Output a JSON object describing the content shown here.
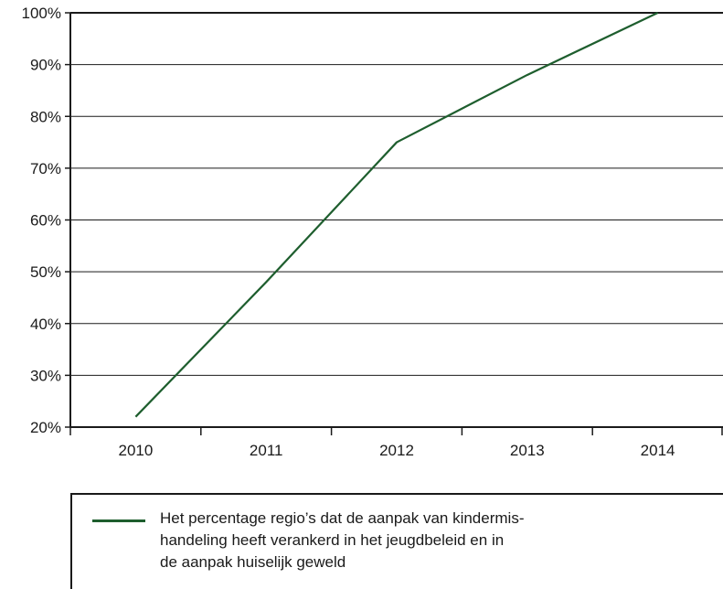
{
  "chart_data": {
    "type": "line",
    "title": "",
    "xlabel": "",
    "ylabel": "",
    "categories": [
      "2010",
      "2011",
      "2012",
      "2013",
      "2014"
    ],
    "ylim": [
      20,
      100
    ],
    "yticks": [
      20,
      30,
      40,
      50,
      60,
      70,
      80,
      90,
      100
    ],
    "ytick_labels": [
      "20%",
      "30%",
      "40%",
      "50%",
      "60%",
      "70%",
      "80%",
      "90%",
      "100%"
    ],
    "grid": "horizontal",
    "legend_position": "bottom",
    "series": [
      {
        "name": "Het percentage regio’s dat de aanpak van kindermis-handeling heeft verankerd in het jeugdbeleid en in de aanpak huiselijk geweld",
        "values": [
          22,
          48,
          75,
          88,
          100
        ],
        "color": "#1e5e2e"
      }
    ]
  },
  "colors": {
    "axis": "#1a1a1a",
    "grid": "#1a1a1a",
    "series": "#1e5e2e"
  },
  "legend": {
    "lines": [
      "Het percentage regio’s dat de aanpak van kindermis-",
      "handeling heeft verankerd in het jeugdbeleid en in",
      "de aanpak huiselijk geweld"
    ]
  }
}
